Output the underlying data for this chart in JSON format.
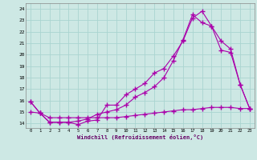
{
  "xlabel": "Windchill (Refroidissement éolien,°C)",
  "background_color": "#cde8e4",
  "grid_color": "#aad4d0",
  "line_color": "#aa00aa",
  "x_ticks": [
    0,
    1,
    2,
    3,
    4,
    5,
    6,
    7,
    8,
    9,
    10,
    11,
    12,
    13,
    14,
    15,
    16,
    17,
    18,
    19,
    20,
    21,
    22,
    23
  ],
  "y_ticks": [
    14,
    15,
    16,
    17,
    18,
    19,
    20,
    21,
    22,
    23,
    24
  ],
  "ylim": [
    13.6,
    24.5
  ],
  "xlim": [
    -0.5,
    23.5
  ],
  "series1_x": [
    0,
    1,
    2,
    3,
    4,
    5,
    6,
    7,
    8,
    9,
    10,
    11,
    12,
    13,
    14,
    15,
    16,
    17,
    18,
    19,
    20,
    21,
    22,
    23
  ],
  "series1_y": [
    15.9,
    14.9,
    14.1,
    14.1,
    14.1,
    13.9,
    14.2,
    14.3,
    15.6,
    15.6,
    16.5,
    17.0,
    17.5,
    18.4,
    18.8,
    19.9,
    21.2,
    23.2,
    23.8,
    22.5,
    20.4,
    20.2,
    17.4,
    15.3
  ],
  "series2_x": [
    0,
    1,
    2,
    3,
    4,
    5,
    6,
    7,
    8,
    9,
    10,
    11,
    12,
    13,
    14,
    15,
    16,
    17,
    18,
    19,
    20,
    21,
    22,
    23
  ],
  "series2_y": [
    15.9,
    14.9,
    14.1,
    14.1,
    14.1,
    14.2,
    14.4,
    14.8,
    15.0,
    15.2,
    15.6,
    16.3,
    16.7,
    17.2,
    18.0,
    19.5,
    21.3,
    23.5,
    22.8,
    22.5,
    21.2,
    20.5,
    17.4,
    15.3
  ],
  "series3_x": [
    0,
    1,
    2,
    3,
    4,
    5,
    6,
    7,
    8,
    9,
    10,
    11,
    12,
    13,
    14,
    15,
    16,
    17,
    18,
    19,
    20,
    21,
    22,
    23
  ],
  "series3_y": [
    15.0,
    14.9,
    14.5,
    14.5,
    14.5,
    14.5,
    14.5,
    14.5,
    14.5,
    14.5,
    14.6,
    14.7,
    14.8,
    14.9,
    15.0,
    15.1,
    15.2,
    15.2,
    15.3,
    15.4,
    15.4,
    15.4,
    15.3,
    15.3
  ]
}
